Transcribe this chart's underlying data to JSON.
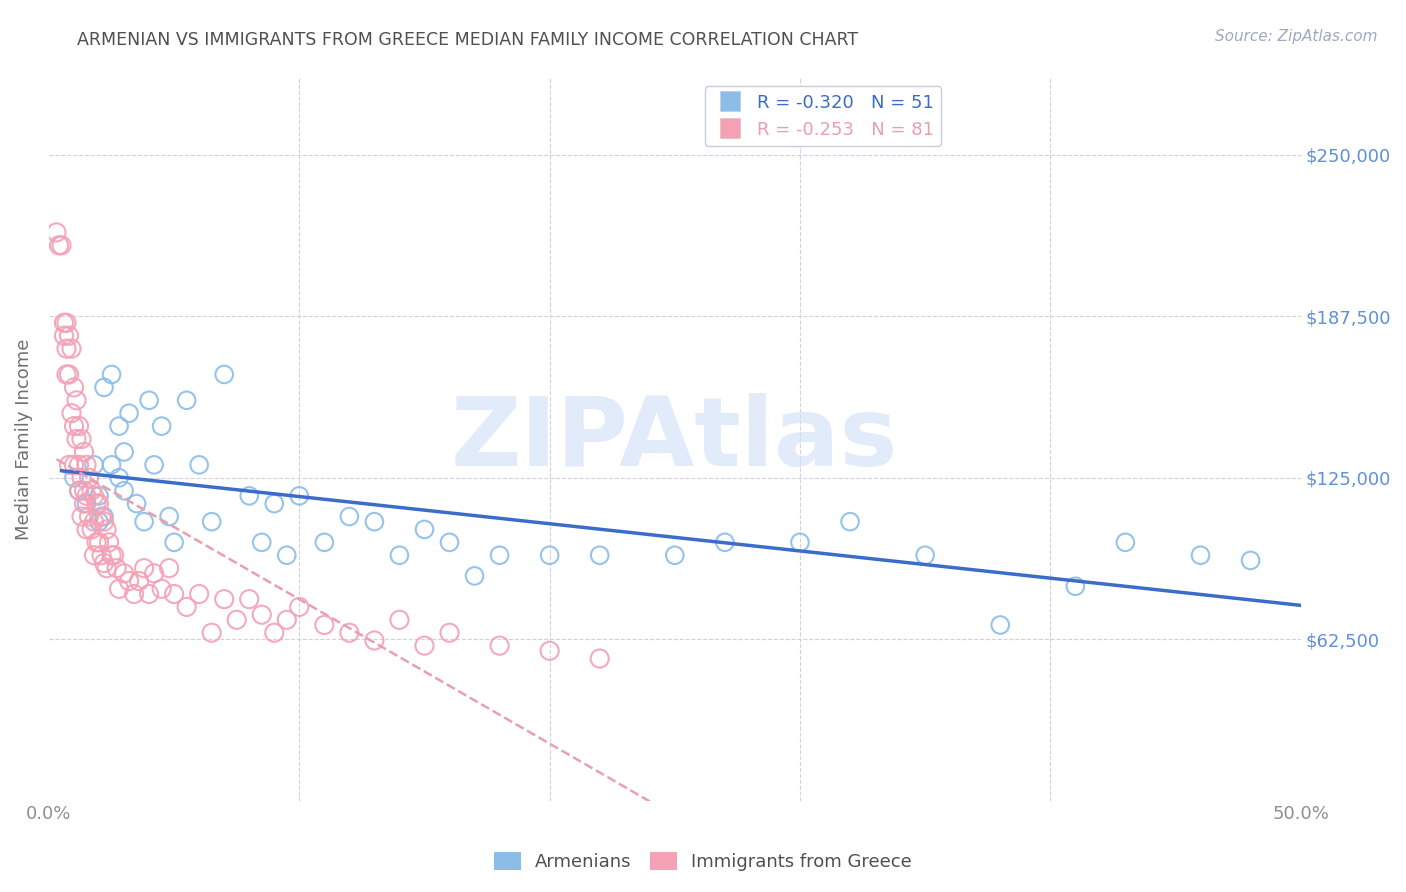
{
  "title": "ARMENIAN VS IMMIGRANTS FROM GREECE MEDIAN FAMILY INCOME CORRELATION CHART",
  "source": "Source: ZipAtlas.com",
  "ylabel": "Median Family Income",
  "xlim": [
    0.0,
    0.5
  ],
  "ylim": [
    0,
    280000
  ],
  "yticks": [
    62500,
    125000,
    187500,
    250000
  ],
  "ytick_labels": [
    "$62,500",
    "$125,000",
    "$187,500",
    "$250,000"
  ],
  "xticks": [
    0.0,
    0.1,
    0.2,
    0.3,
    0.4,
    0.5
  ],
  "xtick_labels": [
    "0.0%",
    "",
    "",
    "",
    "",
    "50.0%"
  ],
  "armenian_R": -0.32,
  "armenian_N": 51,
  "greek_R": -0.253,
  "greek_N": 81,
  "armenian_color": "#8bbde8",
  "greek_color": "#f4a0b5",
  "armenian_line_color": "#3b6cc9",
  "greek_line_color": "#e8a0b0",
  "background_color": "#ffffff",
  "grid_color": "#d0d0e0",
  "title_color": "#505050",
  "source_color": "#a0a8c0",
  "ylabel_color": "#707070",
  "ytick_label_color": "#6090d8",
  "watermark": "ZIPAtlas",
  "watermark_color": "#d0dff5",
  "armenian_x": [
    0.01,
    0.012,
    0.015,
    0.018,
    0.02,
    0.02,
    0.022,
    0.022,
    0.025,
    0.025,
    0.028,
    0.028,
    0.03,
    0.03,
    0.032,
    0.035,
    0.038,
    0.04,
    0.042,
    0.045,
    0.048,
    0.05,
    0.055,
    0.06,
    0.065,
    0.07,
    0.08,
    0.085,
    0.09,
    0.095,
    0.1,
    0.11,
    0.12,
    0.13,
    0.14,
    0.15,
    0.16,
    0.17,
    0.18,
    0.2,
    0.22,
    0.25,
    0.27,
    0.3,
    0.32,
    0.35,
    0.38,
    0.41,
    0.43,
    0.46,
    0.48
  ],
  "armenian_y": [
    125000,
    120000,
    115000,
    130000,
    118000,
    108000,
    160000,
    110000,
    165000,
    130000,
    145000,
    125000,
    135000,
    120000,
    150000,
    115000,
    108000,
    155000,
    130000,
    145000,
    110000,
    100000,
    155000,
    130000,
    108000,
    165000,
    118000,
    100000,
    115000,
    95000,
    118000,
    100000,
    110000,
    108000,
    95000,
    105000,
    100000,
    87000,
    95000,
    95000,
    95000,
    95000,
    100000,
    100000,
    108000,
    95000,
    68000,
    83000,
    100000,
    95000,
    93000
  ],
  "greek_x": [
    0.003,
    0.004,
    0.005,
    0.006,
    0.006,
    0.007,
    0.007,
    0.007,
    0.008,
    0.008,
    0.008,
    0.009,
    0.009,
    0.01,
    0.01,
    0.01,
    0.011,
    0.011,
    0.012,
    0.012,
    0.012,
    0.013,
    0.013,
    0.013,
    0.014,
    0.014,
    0.014,
    0.015,
    0.015,
    0.015,
    0.016,
    0.016,
    0.017,
    0.017,
    0.018,
    0.018,
    0.018,
    0.019,
    0.019,
    0.02,
    0.02,
    0.021,
    0.021,
    0.022,
    0.022,
    0.023,
    0.023,
    0.024,
    0.025,
    0.026,
    0.027,
    0.028,
    0.03,
    0.032,
    0.034,
    0.036,
    0.038,
    0.04,
    0.042,
    0.045,
    0.048,
    0.05,
    0.055,
    0.06,
    0.065,
    0.07,
    0.075,
    0.08,
    0.085,
    0.09,
    0.095,
    0.1,
    0.11,
    0.12,
    0.13,
    0.14,
    0.15,
    0.16,
    0.18,
    0.2,
    0.22
  ],
  "greek_y": [
    220000,
    215000,
    215000,
    185000,
    180000,
    185000,
    175000,
    165000,
    180000,
    165000,
    130000,
    175000,
    150000,
    160000,
    145000,
    130000,
    155000,
    140000,
    145000,
    130000,
    120000,
    140000,
    125000,
    110000,
    135000,
    120000,
    115000,
    130000,
    118000,
    105000,
    125000,
    110000,
    120000,
    105000,
    118000,
    108000,
    95000,
    115000,
    100000,
    115000,
    100000,
    110000,
    95000,
    108000,
    92000,
    105000,
    90000,
    100000,
    95000,
    95000,
    90000,
    82000,
    88000,
    85000,
    80000,
    85000,
    90000,
    80000,
    88000,
    82000,
    90000,
    80000,
    75000,
    80000,
    65000,
    78000,
    70000,
    78000,
    72000,
    65000,
    70000,
    75000,
    68000,
    65000,
    62000,
    70000,
    60000,
    65000,
    60000,
    58000,
    55000
  ]
}
